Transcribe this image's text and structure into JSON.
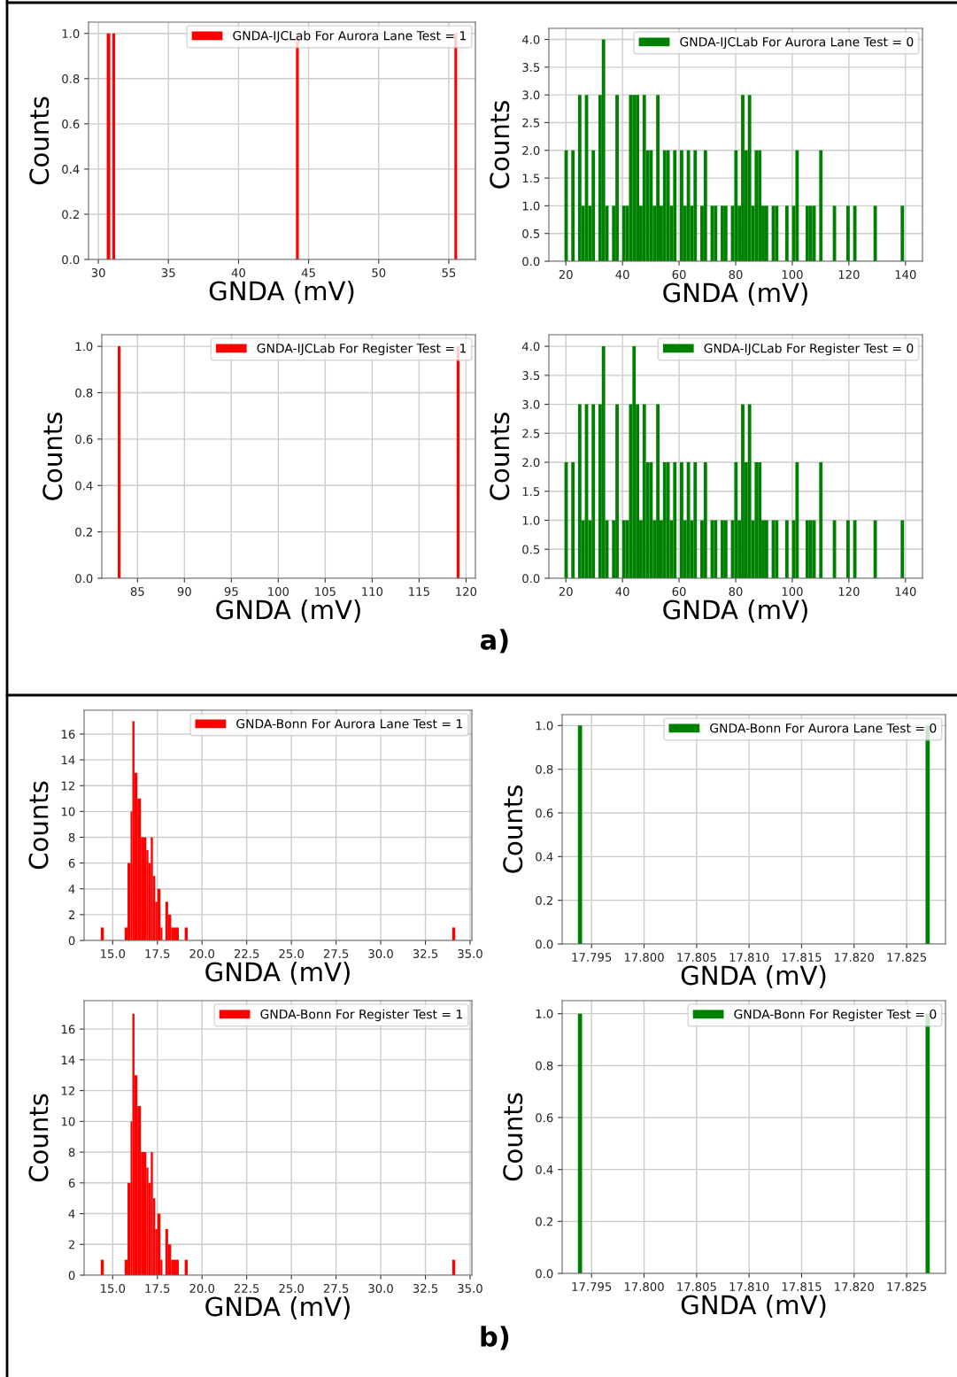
{
  "chart_data": [
    {
      "type": "histogram",
      "xlabel": "GNDA (mV)",
      "ylabel": "Counts",
      "grid": true,
      "legend": "top right",
      "bins": [
        30.6,
        30.85,
        31.0,
        31.2,
        44.1,
        44.3,
        55.4,
        55.6
      ],
      "series": [
        {
          "name": "GNDA-IJCLab For Aurora Lane Test = 1",
          "color": "#ff0000",
          "values": [
            1,
            0,
            1,
            0,
            1,
            0,
            1
          ]
        }
      ],
      "xlim": [
        29.3,
        56.9
      ],
      "xticks": [
        30,
        35,
        40,
        45,
        50,
        55
      ],
      "ylim": [
        0,
        1.05
      ],
      "yticks": [
        {
          "value": 0,
          "label": "0.0"
        },
        0.2,
        0.4,
        0.6,
        0.8,
        {
          "value": 1,
          "label": "1.0"
        }
      ]
    },
    {
      "type": "histogram",
      "xlabel": "GNDA (mV)",
      "ylabel": "Counts",
      "grid": true,
      "legend": "top right",
      "bins": [
        19.5,
        20.7,
        21.9,
        23.1,
        24.3,
        25.5,
        26.7,
        27.9,
        29.1,
        30.3,
        31.5,
        32.7,
        33.9,
        35.1,
        36.3,
        37.5,
        38.7,
        39.9,
        41.1,
        42.3,
        43.5,
        44.7,
        45.9,
        47.1,
        48.3,
        49.5,
        50.7,
        51.9,
        53.1,
        54.3,
        55.5,
        56.7,
        57.9,
        59.1,
        60.3,
        61.5,
        62.7,
        63.9,
        65.1,
        66.3,
        67.5,
        68.7,
        69.9,
        71.1,
        72.3,
        73.5,
        74.7,
        75.9,
        77.1,
        78.3,
        79.5,
        80.7,
        81.9,
        83.1,
        84.3,
        85.5,
        86.7,
        87.9,
        89.1,
        90.3,
        91.5,
        92.7,
        93.9,
        95.1,
        96.3,
        97.5,
        98.7,
        99.9,
        101.1,
        102.3,
        103.5,
        104.7,
        105.9,
        107.1,
        108.3,
        109.5,
        110.7,
        111.9,
        113.1,
        114.3,
        115.5,
        116.7,
        117.9,
        119.1,
        120.3,
        121.5,
        122.7,
        123.9,
        125.1,
        126.3,
        127.5,
        128.7,
        129.9,
        131.1,
        132.3,
        133.5,
        134.7,
        135.9,
        137.1,
        138.3,
        139.5
      ],
      "series": [
        {
          "name": "GNDA-IJCLab For Aurora Lane Test = 0",
          "color": "#008000",
          "values": [
            2,
            0,
            2,
            0,
            3,
            1,
            3,
            1,
            2,
            0,
            3,
            4,
            1,
            0,
            1,
            3,
            0,
            1,
            1,
            3,
            3,
            3,
            1,
            3,
            2,
            2,
            1,
            3,
            1,
            2,
            2,
            1,
            2,
            0,
            2,
            1,
            2,
            1,
            2,
            0,
            1,
            2,
            0,
            1,
            1,
            0,
            1,
            1,
            0,
            1,
            2,
            1,
            3,
            2,
            3,
            1,
            2,
            2,
            1,
            1,
            0,
            1,
            1,
            0,
            0,
            1,
            0,
            1,
            2,
            0,
            0,
            1,
            1,
            1,
            0,
            2,
            0,
            0,
            0,
            1,
            0,
            0,
            0,
            1,
            0,
            1,
            0,
            0,
            0,
            0,
            0,
            1,
            0,
            0,
            0,
            0,
            0,
            0,
            0,
            1
          ]
        }
      ],
      "xlim": [
        14,
        146
      ],
      "xticks": [
        20,
        40,
        60,
        80,
        100,
        120,
        140
      ],
      "ylim": [
        0,
        4.2
      ],
      "yticks": [
        {
          "value": 0,
          "label": "0.0"
        },
        0.5,
        {
          "value": 1,
          "label": "1.0"
        },
        1.5,
        {
          "value": 2,
          "label": "2.0"
        },
        2.5,
        {
          "value": 3,
          "label": "3.0"
        },
        3.5,
        {
          "value": 4,
          "label": "4.0"
        }
      ]
    },
    {
      "type": "histogram",
      "xlabel": "GNDA (mV)",
      "ylabel": "Counts",
      "grid": true,
      "legend": "top right",
      "annotations": [
        "a)"
      ],
      "bins": [
        82.9,
        83.2,
        119.0,
        119.3
      ],
      "series": [
        {
          "name": "GNDA-IJCLab For Register Test = 1",
          "color": "#ff0000",
          "values": [
            1,
            0,
            1
          ]
        }
      ],
      "xlim": [
        81.2,
        121.0
      ],
      "xticks": [
        85,
        90,
        95,
        100,
        105,
        110,
        115,
        120
      ],
      "ylim": [
        0,
        1.05
      ],
      "yticks": [
        {
          "value": 0,
          "label": "0.0"
        },
        0.2,
        0.4,
        0.6,
        0.8,
        {
          "value": 1,
          "label": "1.0"
        }
      ]
    },
    {
      "type": "histogram",
      "xlabel": "GNDA (mV)",
      "ylabel": "Counts",
      "grid": true,
      "legend": "top right",
      "bins": [
        19.5,
        20.7,
        21.9,
        23.1,
        24.3,
        25.5,
        26.7,
        27.9,
        29.1,
        30.3,
        31.5,
        32.7,
        33.9,
        35.1,
        36.3,
        37.5,
        38.7,
        39.9,
        41.1,
        42.3,
        43.5,
        44.7,
        45.9,
        47.1,
        48.3,
        49.5,
        50.7,
        51.9,
        53.1,
        54.3,
        55.5,
        56.7,
        57.9,
        59.1,
        60.3,
        61.5,
        62.7,
        63.9,
        65.1,
        66.3,
        67.5,
        68.7,
        69.9,
        71.1,
        72.3,
        73.5,
        74.7,
        75.9,
        77.1,
        78.3,
        79.5,
        80.7,
        81.9,
        83.1,
        84.3,
        85.5,
        86.7,
        87.9,
        89.1,
        90.3,
        91.5,
        92.7,
        93.9,
        95.1,
        96.3,
        97.5,
        98.7,
        99.9,
        101.1,
        102.3,
        103.5,
        104.7,
        105.9,
        107.1,
        108.3,
        109.5,
        110.7,
        111.9,
        113.1,
        114.3,
        115.5,
        116.7,
        117.9,
        119.1,
        120.3,
        121.5,
        122.7,
        123.9,
        125.1,
        126.3,
        127.5,
        128.7,
        129.9,
        131.1,
        132.3,
        133.5,
        134.7,
        135.9,
        137.1,
        138.3,
        139.5
      ],
      "series": [
        {
          "name": "GNDA-IJCLab For Register Test = 0",
          "color": "#008000",
          "values": [
            2,
            0,
            2,
            0,
            3,
            1,
            3,
            1,
            3,
            0,
            3,
            4,
            1,
            0,
            1,
            3,
            0,
            1,
            1,
            3,
            4,
            3,
            1,
            3,
            2,
            2,
            1,
            3,
            1,
            2,
            2,
            1,
            2,
            0,
            2,
            1,
            2,
            1,
            2,
            0,
            1,
            2,
            0,
            1,
            1,
            0,
            1,
            1,
            0,
            1,
            2,
            1,
            3,
            2,
            3,
            1,
            2,
            2,
            1,
            1,
            0,
            1,
            1,
            0,
            0,
            1,
            0,
            1,
            2,
            0,
            0,
            1,
            1,
            1,
            0,
            2,
            0,
            0,
            0,
            1,
            0,
            0,
            0,
            1,
            0,
            1,
            0,
            0,
            0,
            0,
            0,
            1,
            0,
            0,
            0,
            0,
            0,
            0,
            0,
            1
          ]
        }
      ],
      "xlim": [
        14,
        146
      ],
      "xticks": [
        20,
        40,
        60,
        80,
        100,
        120,
        140
      ],
      "ylim": [
        0,
        4.2
      ],
      "yticks": [
        {
          "value": 0,
          "label": "0.0"
        },
        0.5,
        {
          "value": 1,
          "label": "1.0"
        },
        1.5,
        {
          "value": 2,
          "label": "2.0"
        },
        2.5,
        {
          "value": 3,
          "label": "3.0"
        },
        3.5,
        {
          "value": 4,
          "label": "4.0"
        }
      ]
    },
    {
      "type": "histogram",
      "xlabel": "GNDA (mV)",
      "ylabel": "Counts",
      "grid": true,
      "legend": "top right",
      "bins": [
        14.33,
        14.5,
        15.67,
        15.83,
        16.0,
        16.1,
        16.22,
        16.38,
        16.58,
        16.88,
        17.0,
        17.13,
        17.25,
        17.38,
        17.5,
        17.67,
        17.78,
        17.95,
        18.1,
        18.27,
        18.7,
        19.03,
        19.2,
        34.0,
        34.17
      ],
      "series": [
        {
          "name": "GNDA-Bonn For Aurora Lane Test = 1",
          "color": "#ff0000",
          "values": [
            1,
            0,
            1,
            6,
            10,
            17,
            13,
            11,
            8,
            7,
            6,
            8,
            5,
            3,
            4,
            1,
            0,
            3,
            2,
            1,
            0,
            1,
            0,
            1
          ]
        }
      ],
      "xlim": [
        13.4,
        35.1
      ],
      "xticks": [
        {
          "value": 15,
          "label": "15.0"
        },
        17.5,
        {
          "value": 20,
          "label": "20.0"
        },
        22.5,
        {
          "value": 25,
          "label": "25.0"
        },
        27.5,
        {
          "value": 30,
          "label": "30.0"
        },
        32.5,
        {
          "value": 35,
          "label": "35.0"
        }
      ],
      "ylim": [
        0,
        17.85
      ],
      "yticks": [
        0,
        2,
        4,
        6,
        8,
        10,
        12,
        14,
        16
      ]
    },
    {
      "type": "histogram",
      "xlabel": "GNDA (mV)",
      "ylabel": "Counts",
      "grid": true,
      "legend": "top right",
      "bins": [
        17.7937,
        17.7941,
        17.8268,
        17.8272
      ],
      "series": [
        {
          "name": "GNDA-Bonn For Aurora Lane Test = 0",
          "color": "#008000",
          "values": [
            1,
            0,
            1
          ]
        }
      ],
      "xlim": [
        17.7922,
        17.8287
      ],
      "xticks": [
        17.795,
        {
          "value": 17.8,
          "label": "17.800"
        },
        17.805,
        {
          "value": 17.81,
          "label": "17.810"
        },
        17.815,
        {
          "value": 17.82,
          "label": "17.820"
        },
        17.825
      ],
      "ylim": [
        0,
        1.05
      ],
      "yticks": [
        {
          "value": 0,
          "label": "0.0"
        },
        0.2,
        0.4,
        0.6,
        0.8,
        {
          "value": 1,
          "label": "1.0"
        }
      ]
    },
    {
      "type": "histogram",
      "xlabel": "GNDA (mV)",
      "ylabel": "Counts",
      "grid": true,
      "legend": "top right",
      "annotations": [
        "b)"
      ],
      "bins": [
        14.33,
        14.5,
        15.67,
        15.83,
        16.0,
        16.1,
        16.22,
        16.38,
        16.58,
        16.88,
        17.0,
        17.13,
        17.25,
        17.38,
        17.5,
        17.67,
        17.78,
        17.95,
        18.1,
        18.27,
        18.7,
        19.03,
        19.2,
        34.0,
        34.17
      ],
      "series": [
        {
          "name": "GNDA-Bonn For Register Test = 1",
          "color": "#ff0000",
          "values": [
            1,
            0,
            1,
            6,
            10,
            17,
            13,
            11,
            8,
            7,
            6,
            8,
            5,
            3,
            4,
            1,
            0,
            3,
            2,
            1,
            0,
            1,
            0,
            1
          ]
        }
      ],
      "xlim": [
        13.4,
        35.1
      ],
      "xticks": [
        {
          "value": 15,
          "label": "15.0"
        },
        17.5,
        {
          "value": 20,
          "label": "20.0"
        },
        22.5,
        {
          "value": 25,
          "label": "25.0"
        },
        27.5,
        {
          "value": 30,
          "label": "30.0"
        },
        32.5,
        {
          "value": 35,
          "label": "35.0"
        }
      ],
      "ylim": [
        0,
        17.85
      ],
      "yticks": [
        0,
        2,
        4,
        6,
        8,
        10,
        12,
        14,
        16
      ]
    },
    {
      "type": "histogram",
      "xlabel": "GNDA (mV)",
      "ylabel": "Counts",
      "grid": true,
      "legend": "top right",
      "bins": [
        17.7937,
        17.7941,
        17.8268,
        17.8272
      ],
      "series": [
        {
          "name": "GNDA-Bonn For Register Test = 0",
          "color": "#008000",
          "values": [
            1,
            0,
            1
          ]
        }
      ],
      "xlim": [
        17.7922,
        17.8287
      ],
      "xticks": [
        17.795,
        {
          "value": 17.8,
          "label": "17.800"
        },
        17.805,
        {
          "value": 17.81,
          "label": "17.810"
        },
        17.815,
        {
          "value": 17.82,
          "label": "17.820"
        },
        17.825
      ],
      "ylim": [
        0,
        1.05
      ],
      "yticks": [
        {
          "value": 0,
          "label": "0.0"
        },
        0.2,
        0.4,
        0.6,
        0.8,
        {
          "value": 1,
          "label": "1.0"
        }
      ]
    }
  ]
}
